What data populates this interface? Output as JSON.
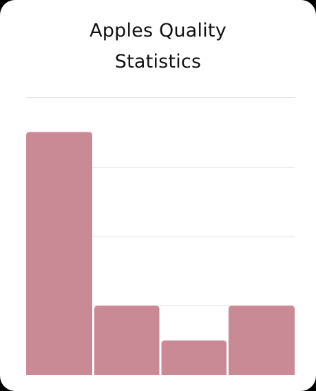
{
  "chart_data": {
    "type": "bar",
    "title_lines": [
      "Apples Quality",
      "Statistics"
    ],
    "categories": [
      "",
      "",
      "",
      ""
    ],
    "values": [
      3.5,
      1,
      0.5,
      1
    ],
    "ylim": [
      0,
      4
    ],
    "grid": true,
    "colors": {
      "bar": "#c98a96",
      "grid": "#e2e2e2"
    }
  }
}
